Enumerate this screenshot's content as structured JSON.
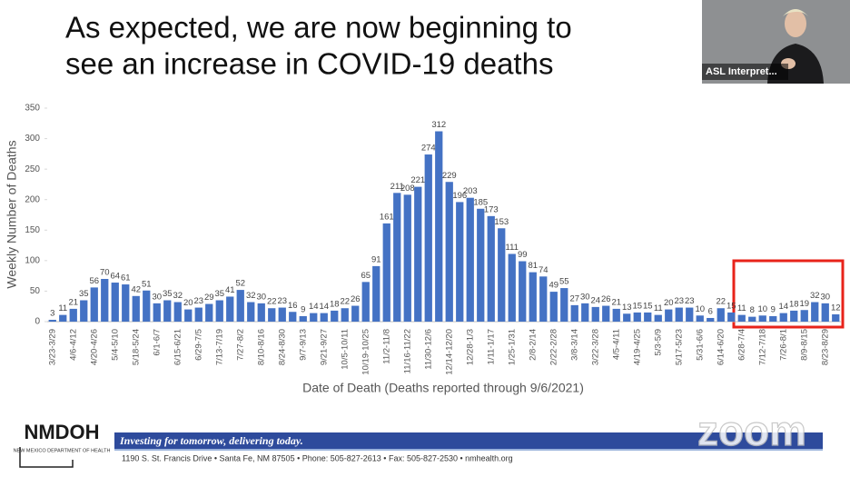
{
  "slide": {
    "title_lines": [
      "As expected, we are now beginning to",
      "see an increase in COVID-19 deaths"
    ]
  },
  "webcam": {
    "label": "ASL Interpret..."
  },
  "chart_data": {
    "type": "bar",
    "y_axis_label": "Weekly Number of Deaths",
    "x_axis_label": "Date of Death (Deaths reported through 9/6/2021)",
    "categories": [
      "3/23-3/29",
      null,
      "4/6-4/12",
      null,
      "4/20-4/26",
      null,
      "5/4-5/10",
      null,
      "5/18-5/24",
      null,
      "6/1-6/7",
      null,
      "6/15-6/21",
      null,
      "6/29-7/5",
      null,
      "7/13-7/19",
      null,
      "7/27-8/2",
      null,
      "8/10-8/16",
      null,
      "8/24-8/30",
      null,
      "9/7-9/13",
      null,
      "9/21-9/27",
      null,
      "10/5-10/11",
      null,
      "10/19-10/25",
      null,
      "11/2-11/8",
      null,
      "11/16-11/22",
      null,
      "11/30-12/6",
      null,
      "12/14-12/20",
      null,
      "12/28-1/3",
      null,
      "1/11-1/17",
      null,
      "1/25-1/31",
      null,
      "2/8-2/14",
      null,
      "2/22-2/28",
      null,
      "3/8-3/14",
      null,
      "3/22-3/28",
      null,
      "4/5-4/11",
      null,
      "4/19-4/25",
      null,
      "5/3-5/9",
      null,
      "5/17-5/23",
      null,
      "5/31-6/6",
      null,
      "6/14-6/20",
      null,
      "6/28-7/4",
      null,
      "7/12-7/18",
      null,
      "7/26-8/1",
      null,
      "8/9-8/15",
      null,
      "8/23-8/29",
      null
    ],
    "values": [
      3,
      11,
      21,
      35,
      56,
      70,
      64,
      61,
      42,
      51,
      30,
      35,
      32,
      20,
      23,
      29,
      35,
      41,
      52,
      32,
      30,
      22,
      23,
      16,
      9,
      14,
      14,
      18,
      22,
      26,
      65,
      91,
      161,
      211,
      208,
      221,
      274,
      312,
      229,
      196,
      203,
      185,
      173,
      153,
      111,
      99,
      81,
      74,
      49,
      55,
      27,
      30,
      24,
      26,
      21,
      13,
      15,
      15,
      11,
      20,
      23,
      23,
      10,
      6,
      22,
      15,
      11,
      8,
      10,
      9,
      14,
      18,
      19,
      32,
      30,
      12
    ],
    "color": "#4472c4",
    "ylim": [
      0,
      350
    ],
    "yticks": [
      0,
      50,
      100,
      150,
      200,
      250,
      300,
      350
    ],
    "grid": false
  },
  "footer": {
    "logo": "NMDOH",
    "logo_sub": "NEW MEXICO DEPARTMENT OF HEALTH",
    "tagline": "Investing for tomorrow, delivering today.",
    "address": "1190 S. St. Francis Drive • Santa Fe, NM 87505 • Phone: 505-827-2613 • Fax: 505-827-2530 • nmhealth.org",
    "watermark": "zoom"
  }
}
